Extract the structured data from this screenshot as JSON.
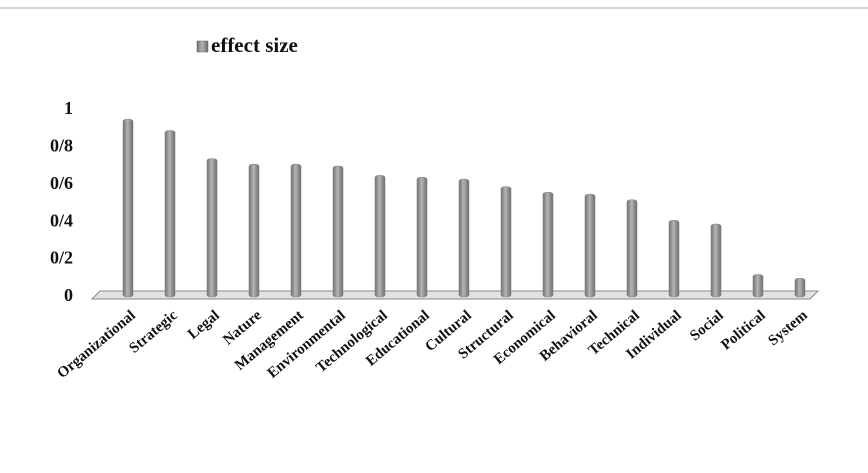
{
  "chart_data": {
    "type": "bar",
    "categories": [
      "Organizational",
      "Strategic",
      "Legal",
      "Nature",
      "Management",
      "Environmental",
      "Technological",
      "Educational",
      "Cultural",
      "Structural",
      "Economical",
      "Behavioral",
      "Technical",
      "Individual",
      "Social",
      "Political",
      "System"
    ],
    "series": [
      {
        "name": "effect size",
        "color": "#8a8a8a",
        "values": [
          0.95,
          0.89,
          0.74,
          0.71,
          0.71,
          0.7,
          0.65,
          0.64,
          0.63,
          0.59,
          0.56,
          0.55,
          0.52,
          0.41,
          0.39,
          0.12,
          0.1
        ]
      }
    ],
    "ylim": [
      0,
      1
    ],
    "yticks": [
      0,
      {
        "value": 0.2,
        "label": "0/2"
      },
      {
        "value": 0.4,
        "label": "0/4"
      },
      {
        "value": 0.6,
        "label": "0/6"
      },
      {
        "value": 0.8,
        "label": "0/8"
      },
      1
    ],
    "grid": false,
    "legend": "top"
  }
}
